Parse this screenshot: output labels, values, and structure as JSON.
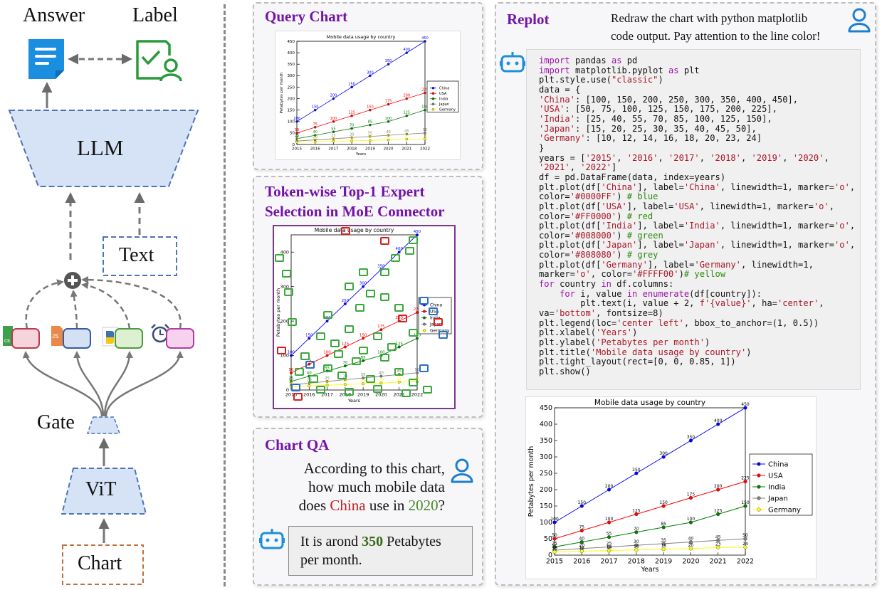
{
  "left": {
    "answer_label": "Answer",
    "label_label": "Label",
    "llm_label": "LLM",
    "text_label": "Text",
    "gate_label": "Gate",
    "vit_label": "ViT",
    "chart_label": "Chart"
  },
  "query_chart": {
    "title": "Query Chart"
  },
  "token_panel": {
    "title_line1": "Token-wise Top-1 Expert",
    "title_line2": "Selection in MoE Connector"
  },
  "chart_qa": {
    "title": "Chart QA",
    "question_line1": "According to this chart,",
    "question_line2": "how much mobile data",
    "question_line3_a": "does ",
    "question_line3_china": "China",
    "question_line3_b": " use in ",
    "question_line3_year": "2020",
    "question_line3_c": "?",
    "answer_a": "It is arond ",
    "answer_value": "350",
    "answer_b": " Petabytes",
    "answer_line2": "per month."
  },
  "replot": {
    "title": "Replot",
    "prompt_line1": "Redraw the chart with python matplotlib",
    "prompt_line2": "code output. Pay attention to the line color!"
  },
  "colors": {
    "china": "#0000FF",
    "usa": "#FF0000",
    "india": "#008000",
    "japan": "#808080",
    "germany": "#FFFF00",
    "accent_purple": "#7413a8",
    "llm_fill": "#d6e2f5",
    "llm_border": "#4a74b8"
  },
  "chart_data": {
    "type": "line",
    "title": "Mobile data usage by country",
    "xlabel": "Years",
    "ylabel": "Petabytes per month",
    "categories": [
      "2015",
      "2016",
      "2017",
      "2018",
      "2019",
      "2020",
      "2021",
      "2022"
    ],
    "ylim": [
      0,
      450
    ],
    "yticks": [
      0,
      50,
      100,
      150,
      200,
      250,
      300,
      350,
      400,
      450
    ],
    "legend": "center-left-outside",
    "series": [
      {
        "name": "China",
        "color": "#0000FF",
        "values": [
          100,
          150,
          200,
          250,
          300,
          350,
          400,
          450
        ]
      },
      {
        "name": "USA",
        "color": "#FF0000",
        "values": [
          50,
          75,
          100,
          125,
          150,
          175,
          200,
          225
        ]
      },
      {
        "name": "India",
        "color": "#008000",
        "values": [
          25,
          40,
          55,
          70,
          85,
          100,
          125,
          150
        ]
      },
      {
        "name": "Japan",
        "color": "#808080",
        "values": [
          15,
          20,
          25,
          30,
          35,
          40,
          45,
          50
        ]
      },
      {
        "name": "Germany",
        "color": "#FFFF00",
        "values": [
          10,
          12,
          14,
          16,
          18,
          20,
          23,
          24
        ]
      }
    ]
  },
  "code_lines": [
    [
      [
        "kw",
        "import"
      ],
      [
        "t",
        " pandas "
      ],
      [
        "kw",
        "as"
      ],
      [
        "t",
        " pd"
      ]
    ],
    [
      [
        "kw",
        "import"
      ],
      [
        "t",
        " matplotlib.pyplot "
      ],
      [
        "kw",
        "as"
      ],
      [
        "t",
        " plt"
      ]
    ],
    [
      [
        "t",
        "plt.style.use("
      ],
      [
        "st",
        "\"classic\""
      ],
      [
        "t",
        ")"
      ]
    ],
    [
      [
        "t",
        "data = {"
      ]
    ],
    [
      [
        "st",
        "'China'"
      ],
      [
        "t",
        ": [100, 150, 200, 250, 300, 350, 400, 450],"
      ]
    ],
    [
      [
        "st",
        "'USA'"
      ],
      [
        "t",
        ": [50, 75, 100, 125, 150, 175, 200, 225],"
      ]
    ],
    [
      [
        "st",
        "'India'"
      ],
      [
        "t",
        ": [25, 40, 55, 70, 85, 100, 125, 150],"
      ]
    ],
    [
      [
        "st",
        "'Japan'"
      ],
      [
        "t",
        ": [15, 20, 25, 30, 35, 40, 45, 50],"
      ]
    ],
    [
      [
        "st",
        "'Germany'"
      ],
      [
        "t",
        ": [10, 12, 14, 16, 18, 20, 23, 24]"
      ]
    ],
    [
      [
        "t",
        "}"
      ]
    ],
    [
      [
        "t",
        "years = ["
      ],
      [
        "st",
        "'2015'"
      ],
      [
        "t",
        ", "
      ],
      [
        "st",
        "'2016'"
      ],
      [
        "t",
        ", "
      ],
      [
        "st",
        "'2017'"
      ],
      [
        "t",
        ", "
      ],
      [
        "st",
        "'2018'"
      ],
      [
        "t",
        ", "
      ],
      [
        "st",
        "'2019'"
      ],
      [
        "t",
        ", "
      ],
      [
        "st",
        "'2020'"
      ],
      [
        "t",
        ","
      ]
    ],
    [
      [
        "st",
        "'2021'"
      ],
      [
        "t",
        ", "
      ],
      [
        "st",
        "'2022'"
      ],
      [
        "t",
        "]"
      ]
    ],
    [
      [
        "t",
        "df = pd.DataFrame(data, index=years)"
      ]
    ],
    [
      [
        "t",
        "plt.plot(df["
      ],
      [
        "st",
        "'China'"
      ],
      [
        "t",
        "], label="
      ],
      [
        "st",
        "'China'"
      ],
      [
        "t",
        ", linewidth=1, marker="
      ],
      [
        "st",
        "'o'"
      ],
      [
        "t",
        ","
      ]
    ],
    [
      [
        "t",
        "color="
      ],
      [
        "st",
        "'#0000FF'"
      ],
      [
        "t",
        ") "
      ],
      [
        "cm",
        "# blue"
      ]
    ],
    [
      [
        "t",
        "plt.plot(df["
      ],
      [
        "st",
        "'USA'"
      ],
      [
        "t",
        "], label="
      ],
      [
        "st",
        "'USA'"
      ],
      [
        "t",
        ", linewidth=1, marker="
      ],
      [
        "st",
        "'o'"
      ],
      [
        "t",
        ","
      ]
    ],
    [
      [
        "t",
        "color="
      ],
      [
        "st",
        "'#FF0000'"
      ],
      [
        "t",
        ") "
      ],
      [
        "cm",
        "# red"
      ]
    ],
    [
      [
        "t",
        "plt.plot(df["
      ],
      [
        "st",
        "'India'"
      ],
      [
        "t",
        "], label="
      ],
      [
        "st",
        "'India'"
      ],
      [
        "t",
        ", linewidth=1, marker="
      ],
      [
        "st",
        "'o'"
      ],
      [
        "t",
        ","
      ]
    ],
    [
      [
        "t",
        "color="
      ],
      [
        "st",
        "'#008000'"
      ],
      [
        "t",
        ") "
      ],
      [
        "cm",
        "# green"
      ]
    ],
    [
      [
        "t",
        "plt.plot(df["
      ],
      [
        "st",
        "'Japan'"
      ],
      [
        "t",
        "], label="
      ],
      [
        "st",
        "'Japan'"
      ],
      [
        "t",
        ", linewidth=1, marker="
      ],
      [
        "st",
        "'o'"
      ],
      [
        "t",
        ","
      ]
    ],
    [
      [
        "t",
        "color="
      ],
      [
        "st",
        "'#808080'"
      ],
      [
        "t",
        ") "
      ],
      [
        "cm",
        "# grey"
      ]
    ],
    [
      [
        "t",
        "plt.plot(df["
      ],
      [
        "st",
        "'Germany'"
      ],
      [
        "t",
        "], label="
      ],
      [
        "st",
        "'Germany'"
      ],
      [
        "t",
        ", linewidth=1,"
      ]
    ],
    [
      [
        "t",
        "marker="
      ],
      [
        "st",
        "'o'"
      ],
      [
        "t",
        ", color="
      ],
      [
        "st",
        "'#FFFF00'"
      ],
      [
        "t",
        ")"
      ],
      [
        "cm",
        "# yellow"
      ]
    ],
    [
      [
        "kw",
        "for"
      ],
      [
        "t",
        " country "
      ],
      [
        "kw",
        "in"
      ],
      [
        "t",
        " df.columns:"
      ]
    ],
    [
      [
        "t",
        "    "
      ],
      [
        "kw",
        "for"
      ],
      [
        "t",
        " i, value "
      ],
      [
        "kw",
        "in"
      ],
      [
        "t",
        " "
      ],
      [
        "fn",
        "enumerate"
      ],
      [
        "t",
        "(df[country]):"
      ]
    ],
    [
      [
        "t",
        "        plt.text(i, value + 2, "
      ],
      [
        "st",
        "f'{value}'"
      ],
      [
        "t",
        ", ha="
      ],
      [
        "st",
        "'center'"
      ],
      [
        "t",
        ","
      ]
    ],
    [
      [
        "t",
        "va="
      ],
      [
        "st",
        "'bottom'"
      ],
      [
        "t",
        ", fontsize=8)"
      ]
    ],
    [
      [
        "t",
        "plt.legend(loc="
      ],
      [
        "st",
        "'center left'"
      ],
      [
        "t",
        ", bbox_to_anchor=(1, 0.5))"
      ]
    ],
    [
      [
        "t",
        "plt.xlabel("
      ],
      [
        "st",
        "'Years'"
      ],
      [
        "t",
        ")"
      ]
    ],
    [
      [
        "t",
        "plt.ylabel("
      ],
      [
        "st",
        "'Petabytes per month'"
      ],
      [
        "t",
        ")"
      ]
    ],
    [
      [
        "t",
        "plt.title("
      ],
      [
        "st",
        "'Mobile data usage by country'"
      ],
      [
        "t",
        ")"
      ]
    ],
    [
      [
        "t",
        "plt.tight_layout(rect=[0, 0, 0.85, 1])"
      ]
    ],
    [
      [
        "t",
        "plt.show()"
      ]
    ]
  ]
}
